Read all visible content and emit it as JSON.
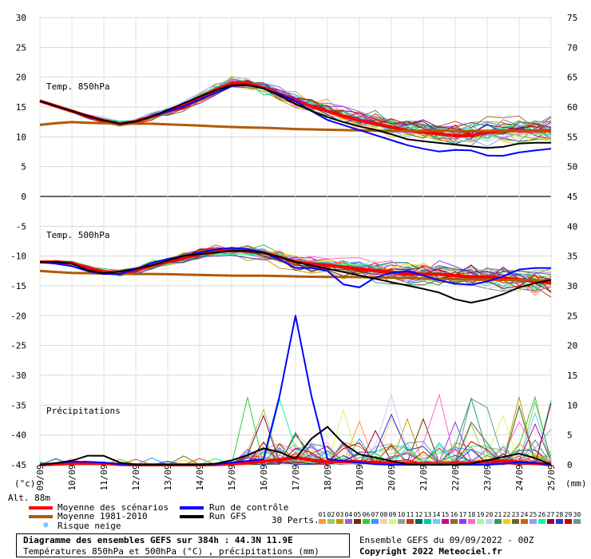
{
  "chart_data": {
    "type": "line",
    "title": "Diagramme des ensembles GEFS sur 384h : 44.3N 11.9E",
    "subtitle": "Températures 850hPa et 500hPa (°C) , précipitations (mm)",
    "run_info": "Ensemble GEFS du 09/09/2022 - 00Z",
    "copyright": "Copyright 2022 Meteociel.fr",
    "altitude": "Alt. 88m",
    "left_unit": "(°c)",
    "right_unit": "(mm)",
    "y_left_ticks": [
      "30",
      "25",
      "20",
      "15",
      "10",
      "5",
      "0",
      "-5",
      "-10",
      "-15",
      "-20",
      "-25",
      "-30",
      "-35",
      "-40",
      "-45"
    ],
    "y_right_ticks": [
      "75",
      "70",
      "65",
      "60",
      "55",
      "50",
      "45",
      "40",
      "35",
      "30",
      "25",
      "20",
      "15",
      "10",
      "5",
      "0"
    ],
    "ylim_left": [
      -45,
      30
    ],
    "x_labels": [
      "09/09",
      "10/09",
      "11/09",
      "12/09",
      "13/09",
      "14/09",
      "15/09",
      "16/09",
      "17/09",
      "18/09",
      "19/09",
      "20/09",
      "21/09",
      "22/09",
      "23/09",
      "24/09",
      "25/09"
    ],
    "panel_labels": {
      "t850": "Temp. 850hPa",
      "t500": "Temp. 500hPa",
      "precip": "Précipitations"
    },
    "legend": {
      "mean": "Moyenne des scénarios",
      "clim": "Moyenne 1981-2010",
      "snow": "Risque neige",
      "control": "Run de contrôle",
      "gfs": "Run GFS",
      "perts": "30 Perts."
    },
    "pert_numbers": [
      "01",
      "02",
      "03",
      "04",
      "05",
      "06",
      "07",
      "08",
      "09",
      "10",
      "11",
      "12",
      "13",
      "14",
      "15",
      "16",
      "17",
      "18",
      "19",
      "20",
      "21",
      "22",
      "23",
      "24",
      "25",
      "26",
      "27",
      "28",
      "29",
      "30"
    ],
    "colors": {
      "mean": "#ff0000",
      "clim": "#b35900",
      "control": "#0000ff",
      "gfs": "#000000",
      "pert_colors": [
        "#ff9933",
        "#99cc66",
        "#cc9900",
        "#9966cc",
        "#663300",
        "#33cc33",
        "#3399ff",
        "#ffcc99",
        "#ccff66",
        "#999999",
        "#cc3300",
        "#006666",
        "#00cc99",
        "#66ccff",
        "#cc0099",
        "#996633",
        "#9933ff",
        "#ff66cc",
        "#99ff99",
        "#ccccff",
        "#339966",
        "#ffcc00",
        "#666633",
        "#cc6600",
        "#9999ff",
        "#00ff99",
        "#990033",
        "#3333cc",
        "#cc0000",
        "#669999"
      ]
    },
    "series": [
      {
        "name": "Moyenne des scénarios",
        "panel": "t850",
        "values": [
          16,
          14.5,
          13,
          12,
          13.5,
          15,
          17.5,
          19.5,
          18,
          16,
          14.5,
          13,
          12,
          11,
          10.5,
          10,
          11,
          11,
          11
        ]
      },
      {
        "name": "Moyenne 1981-2010",
        "panel": "t850",
        "values": [
          12,
          12.5,
          12.3,
          12.2,
          12.2,
          12,
          11.8,
          11.6,
          11.5,
          11.3,
          11.2,
          11.1,
          11,
          11,
          11,
          11,
          11,
          11,
          11
        ]
      },
      {
        "name": "Run de contrôle",
        "panel": "t850",
        "values": [
          16,
          14.5,
          13,
          12,
          13.5,
          15,
          17,
          19,
          18,
          16,
          13,
          11.5,
          10,
          8.5,
          7.5,
          8,
          6.5,
          7.5,
          8
        ]
      },
      {
        "name": "Run GFS",
        "panel": "t850",
        "values": [
          16,
          14.5,
          13,
          12,
          13.5,
          15.5,
          17.5,
          19,
          18,
          15.5,
          13.5,
          12,
          11,
          9.5,
          9,
          8.5,
          8,
          9,
          9
        ]
      },
      {
        "name": "Moyenne des scénarios",
        "panel": "t500",
        "values": [
          -11,
          -11,
          -12.5,
          -13,
          -11.5,
          -10.5,
          -9,
          -9,
          -9.5,
          -11,
          -11.5,
          -12,
          -12.5,
          -13,
          -13,
          -13.5,
          -13.5,
          -14,
          -14.5
        ]
      },
      {
        "name": "Moyenne 1981-2010",
        "panel": "t500",
        "values": [
          -12.5,
          -12.8,
          -12.9,
          -13,
          -13,
          -13.1,
          -13.2,
          -13.3,
          -13.3,
          -13.4,
          -13.5,
          -13.5,
          -13.6,
          -13.7,
          -13.8,
          -13.9,
          -14,
          -14,
          -14.1
        ]
      },
      {
        "name": "Run de contrôle",
        "panel": "t500",
        "values": [
          -11,
          -11.5,
          -13,
          -13,
          -11,
          -10,
          -9,
          -8.5,
          -9.5,
          -12,
          -12,
          -16,
          -13,
          -12.5,
          -14,
          -15,
          -14,
          -12,
          -12
        ]
      },
      {
        "name": "Run GFS",
        "panel": "t500",
        "values": [
          -11,
          -11,
          -13,
          -12.5,
          -11.5,
          -10,
          -9.5,
          -9,
          -9.5,
          -11,
          -12,
          -13,
          -14,
          -15,
          -16,
          -18,
          -17,
          -15,
          -14
        ]
      },
      {
        "name": "Moyenne des scénarios",
        "panel": "precip",
        "values": [
          0,
          0.2,
          0.3,
          0,
          0,
          0,
          0,
          0.2,
          0.6,
          1.2,
          0.5,
          0.6,
          0.3,
          0.2,
          0.1,
          0.2,
          0.8,
          0.4,
          0
        ]
      },
      {
        "name": "Run de contrôle",
        "panel": "precip",
        "values": [
          0,
          0.5,
          0.5,
          0,
          0,
          0,
          0,
          0.5,
          1,
          25,
          1,
          0.5,
          0,
          0,
          0,
          0,
          0,
          0.5,
          0
        ]
      },
      {
        "name": "Run GFS",
        "panel": "precip",
        "values": [
          0,
          0.5,
          2,
          0,
          0,
          0,
          0,
          1,
          3,
          1,
          7,
          2,
          1,
          0,
          0,
          0,
          1,
          2,
          0
        ]
      }
    ]
  }
}
